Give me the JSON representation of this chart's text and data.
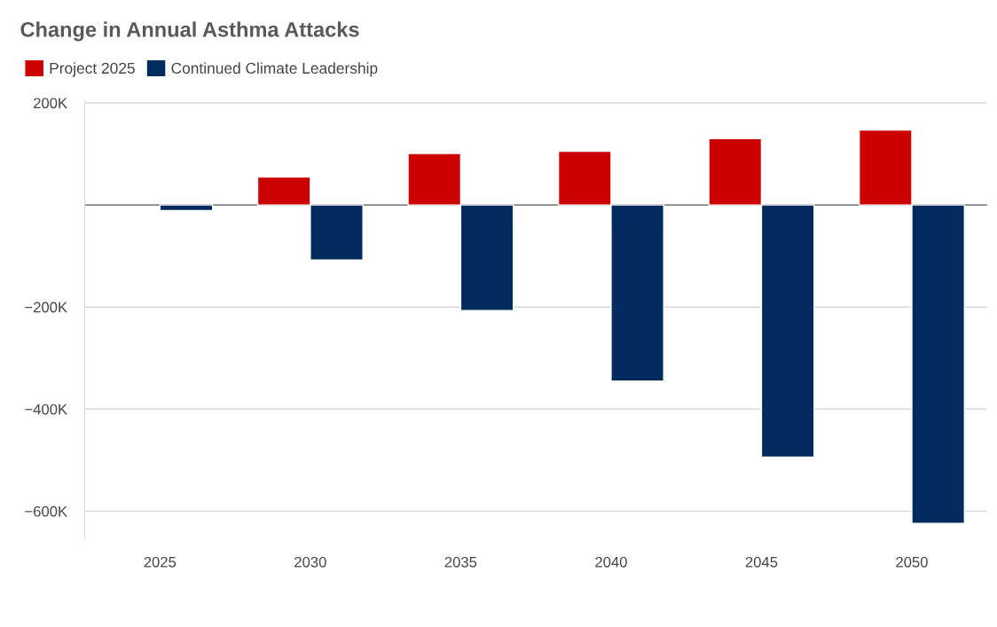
{
  "chart_data": {
    "type": "bar",
    "title": "Change in Annual Asthma Attacks",
    "categories": [
      "2025",
      "2030",
      "2035",
      "2040",
      "2045",
      "2050"
    ],
    "series": [
      {
        "name": "Project 2025",
        "color": "#cc0000",
        "values": [
          null,
          55,
          101,
          105,
          130,
          147
        ]
      },
      {
        "name": "Continued Climate Leadership",
        "color": "#002b5c",
        "values": [
          -11,
          -108,
          -207,
          -345,
          -494,
          -624
        ]
      }
    ],
    "ylim": [
      -655,
      205
    ],
    "yticks": [
      {
        "value": 200,
        "label": "200K"
      },
      {
        "value": 0,
        "label": null
      },
      {
        "value": -200,
        "label": "−200K"
      },
      {
        "value": -400,
        "label": "−400K"
      },
      {
        "value": -600,
        "label": "−600K"
      }
    ],
    "grid": "y",
    "legend": "top left"
  }
}
